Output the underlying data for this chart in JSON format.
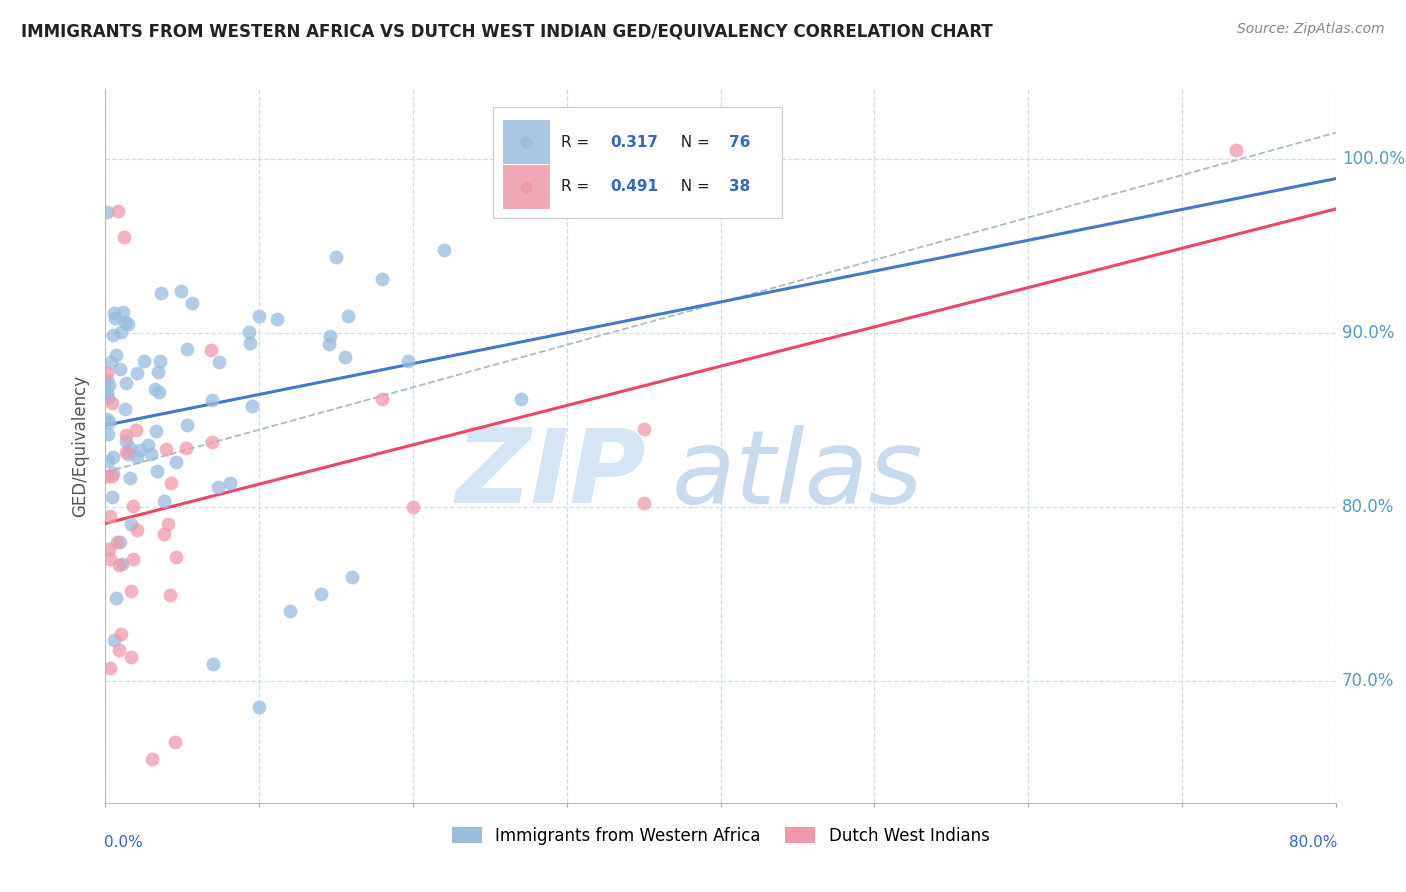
{
  "title": "IMMIGRANTS FROM WESTERN AFRICA VS DUTCH WEST INDIAN GED/EQUIVALENCY CORRELATION CHART",
  "source": "Source: ZipAtlas.com",
  "ylabel": "GED/Equivalency",
  "ytick_vals": [
    70,
    80,
    90,
    100
  ],
  "xlim": [
    0,
    80
  ],
  "ylim": [
    63,
    104
  ],
  "r_blue": "0.317",
  "n_blue": "76",
  "r_pink": "0.491",
  "n_pink": "38",
  "legend_series1": "Immigrants from Western Africa",
  "legend_series2": "Dutch West Indians",
  "blue_scatter_color": "#99BBDD",
  "pink_scatter_color": "#EE99AA",
  "blue_line_color": "#4477CC",
  "pink_line_color": "#EE4466",
  "dashed_color": "#AABBCC",
  "legend_r_color": "#3366CC",
  "grid_color": "#CCDDEE",
  "right_tick_color": "#5599CC",
  "title_color": "#222222",
  "source_color": "#888888",
  "ylabel_color": "#555555"
}
